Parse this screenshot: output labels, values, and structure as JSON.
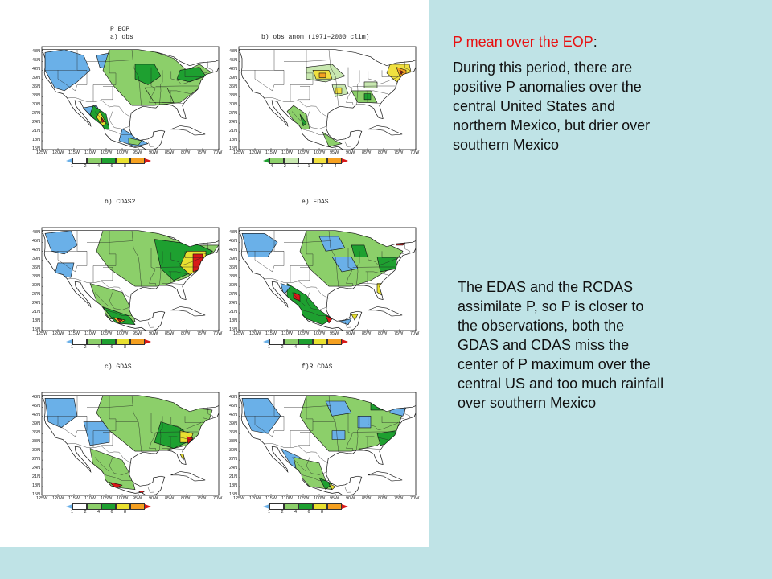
{
  "figure": {
    "lat_labels": [
      "48N",
      "45N",
      "42N",
      "39N",
      "36N",
      "33N",
      "30N",
      "27N",
      "24N",
      "21N",
      "18N",
      "15N"
    ],
    "lon_labels": [
      "125W",
      "120W",
      "115W",
      "110W",
      "105W",
      "100W",
      "95W",
      "90W",
      "85W",
      "80W",
      "75W",
      "70W"
    ],
    "panels": [
      {
        "id": "a",
        "header": "P EOP",
        "title": "a) obs",
        "colorbar": "precip",
        "ticks": [
          "1",
          "2",
          "4",
          "6",
          "8"
        ]
      },
      {
        "id": "b",
        "header": "",
        "title": "b) obs anom (1971–2000 clim)",
        "colorbar": "anom",
        "ticks": [
          "−4",
          "−2",
          "−1",
          "1",
          "2",
          "4"
        ]
      },
      {
        "id": "c",
        "header": "",
        "title": "b) CDAS2",
        "colorbar": "precip",
        "ticks": [
          "1",
          "2",
          "4",
          "6",
          "8"
        ]
      },
      {
        "id": "d",
        "header": "",
        "title": "e) EDAS",
        "colorbar": "precip",
        "ticks": [
          "1",
          "2",
          "4",
          "6",
          "8"
        ]
      },
      {
        "id": "e",
        "header": "",
        "title": "c) GDAS",
        "colorbar": "precip",
        "ticks": [
          "1",
          "2",
          "4",
          "6",
          "8"
        ]
      },
      {
        "id": "f",
        "header": "",
        "title": "f)R  CDAS",
        "colorbar": "precip",
        "ticks": [
          "1",
          "2",
          "4",
          "6",
          "8"
        ]
      }
    ],
    "colors": {
      "precip": [
        "#6ab0e8",
        "#ffffff",
        "#8ccf6a",
        "#1ea030",
        "#e8e030",
        "#f5a020",
        "#d81818"
      ],
      "anom": [
        "#1ea030",
        "#8ccf6a",
        "#c8e8b0",
        "#ffffff",
        "#f0e040",
        "#f5a020",
        "#d81818"
      ],
      "land_line": "#111111",
      "background": "#bfe3e6"
    }
  },
  "text": {
    "heading_part1": "P mean over the EOP",
    "heading_colon": ":",
    "paragraph1": "During this period, there are positive P anomalies over the central United States and northern Mexico, but drier over southern Mexico",
    "paragraph2": "The EDAS and the RCDAS assimilate P, so P is closer to the observations, both the GDAS and CDAS miss the center of  P maximum over the central US and too much rainfall over southern Mexico"
  }
}
